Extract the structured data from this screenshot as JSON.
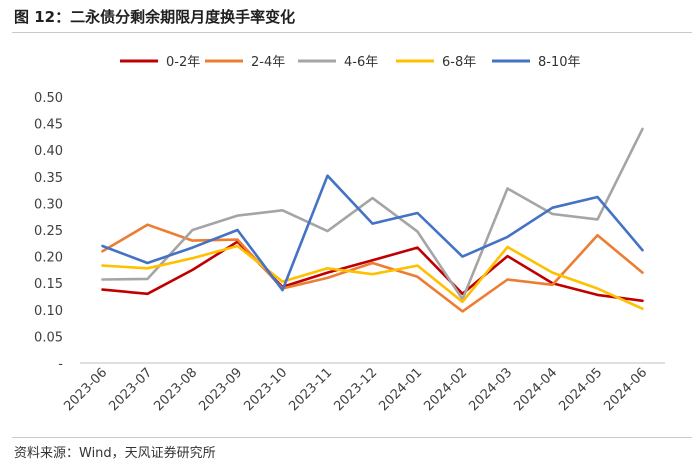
{
  "title": "图 12：二永债分剩余期限月度换手率变化",
  "source": "资料来源：Wind，天风证券研究所",
  "chart_data": {
    "type": "line",
    "categories": [
      "2023-06",
      "2023-07",
      "2023-08",
      "2023-09",
      "2023-10",
      "2023-11",
      "2023-12",
      "2024-01",
      "2024-02",
      "2024-03",
      "2024-04",
      "2024-05",
      "2024-06"
    ],
    "y_ticks": [
      "-",
      "0.05",
      "0.10",
      "0.15",
      "0.20",
      "0.25",
      "0.30",
      "0.35",
      "0.40",
      "0.45",
      "0.50"
    ],
    "ylim": [
      0,
      0.5
    ],
    "grid": false,
    "legend_position": "top",
    "series": [
      {
        "name": "0-2年",
        "color": "#c00000",
        "values": [
          0.138,
          0.13,
          0.175,
          0.228,
          0.143,
          0.17,
          0.193,
          0.217,
          0.13,
          0.201,
          0.15,
          0.128,
          0.117
        ]
      },
      {
        "name": "2-4年",
        "color": "#ed7d31",
        "values": [
          0.21,
          0.26,
          0.23,
          0.232,
          0.14,
          0.16,
          0.188,
          0.162,
          0.097,
          0.157,
          0.147,
          0.24,
          0.17
        ]
      },
      {
        "name": "4-6年",
        "color": "#a5a5a5",
        "values": [
          0.157,
          0.158,
          0.25,
          0.277,
          0.287,
          0.248,
          0.31,
          0.247,
          0.12,
          0.328,
          0.28,
          0.27,
          0.44
        ]
      },
      {
        "name": "6-8年",
        "color": "#ffc000",
        "values": [
          0.183,
          0.178,
          0.197,
          0.22,
          0.153,
          0.178,
          0.167,
          0.183,
          0.115,
          0.218,
          0.17,
          0.14,
          0.102
        ]
      },
      {
        "name": "8-10年",
        "color": "#4472c4",
        "values": [
          0.22,
          0.188,
          0.217,
          0.25,
          0.137,
          0.352,
          0.262,
          0.282,
          0.2,
          0.237,
          0.292,
          0.312,
          0.212
        ]
      }
    ]
  }
}
